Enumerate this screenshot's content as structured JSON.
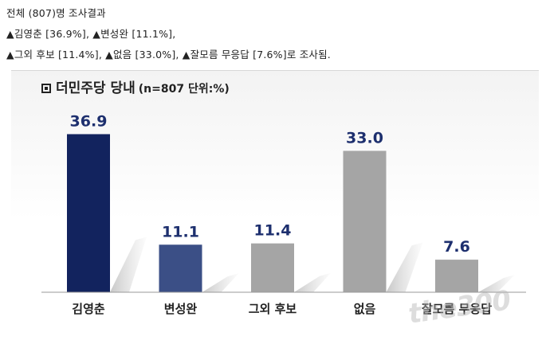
{
  "header": {
    "line1": "전체 (807)명 조사결과",
    "line2": "▲김영춘 [36.9%], ▲변성완 [11.1%],",
    "line3": "▲그외 후보 [11.4%], ▲없음 [33.0%], ▲잘모름 무응답 [7.6%]로 조사됨."
  },
  "chart_data": {
    "type": "bar",
    "title": "더민주당 당내",
    "subtitle": "(n=807 단위:%)",
    "categories": [
      "김영춘",
      "변성완",
      "그외 후보",
      "없음",
      "잘모름 무응답"
    ],
    "values": [
      36.9,
      11.1,
      11.4,
      33.0,
      7.6
    ],
    "value_labels": [
      "36.9",
      "11.1",
      "11.4",
      "33.0",
      "7.6"
    ],
    "colors": [
      "#12235e",
      "#3b4f86",
      "#a5a5a5",
      "#a5a5a5",
      "#a5a5a5"
    ],
    "label_color": "#1d2f6e",
    "ylim": [
      0,
      40
    ],
    "grid": false,
    "legend": "none"
  },
  "watermark": "the300"
}
